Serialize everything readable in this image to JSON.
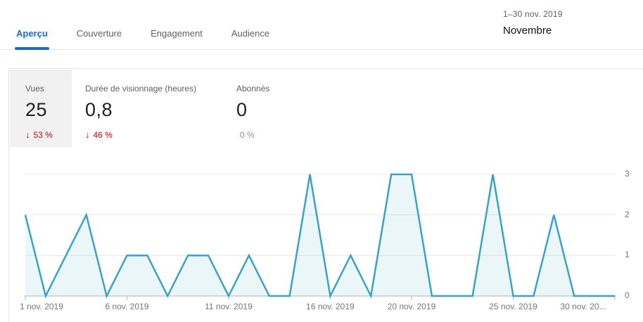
{
  "header": {
    "date_range": "1–30 nov. 2019",
    "period": "Novembre"
  },
  "tabs": {
    "items": [
      {
        "label": "Aperçu",
        "active": true
      },
      {
        "label": "Couverture",
        "active": false
      },
      {
        "label": "Engagement",
        "active": false
      },
      {
        "label": "Audience",
        "active": false
      }
    ]
  },
  "stats": {
    "cards": [
      {
        "label": "Vues",
        "value": "25",
        "delta_arrow": "↓",
        "delta": "53 %",
        "trend": "down",
        "selected": true
      },
      {
        "label": "Durée de visionnage (heures)",
        "value": "0,8",
        "delta_arrow": "↓",
        "delta": "46 %",
        "trend": "down",
        "selected": false
      },
      {
        "label": "Abonnés",
        "value": "0",
        "delta_arrow": "",
        "delta": "0 %",
        "trend": "neutral",
        "selected": false
      }
    ]
  },
  "chart_data": {
    "type": "area",
    "series_label": "Vues",
    "x_unit": "jour (novembre 2019)",
    "x": [
      1,
      2,
      3,
      4,
      5,
      6,
      7,
      8,
      9,
      10,
      11,
      12,
      13,
      14,
      15,
      16,
      17,
      18,
      19,
      20,
      21,
      22,
      23,
      24,
      25,
      26,
      27,
      28,
      29,
      30
    ],
    "values": [
      2,
      0,
      1,
      2,
      0,
      1,
      1,
      0,
      1,
      1,
      0,
      1,
      0,
      0,
      3,
      0,
      1,
      0,
      3,
      3,
      0,
      0,
      0,
      3,
      0,
      0,
      2,
      0,
      0,
      0
    ],
    "x_ticks": [
      {
        "day": 1,
        "label": "1 nov. 2019"
      },
      {
        "day": 6,
        "label": "6 nov. 2019"
      },
      {
        "day": 11,
        "label": "11 nov. 2019"
      },
      {
        "day": 16,
        "label": "16 nov. 2019"
      },
      {
        "day": 20,
        "label": "20 nov. 2019"
      },
      {
        "day": 25,
        "label": "25 nov. 2019"
      },
      {
        "day": 30,
        "label": "30 nov. 20..."
      }
    ],
    "y_ticks": [
      0,
      1,
      2,
      3
    ],
    "ylim": [
      0,
      3
    ],
    "grid": true,
    "legend": "none",
    "y_axis_side": "right"
  },
  "colors": {
    "accent_blue": "#1967d2",
    "negative_red": "#cc0000",
    "line_blue": "#3ba2c7",
    "area_fill": "rgba(59,162,199,0.10)",
    "gridline": "#e8e8e8",
    "axis_line": "#b3b3b3",
    "axis_text": "#757575",
    "text_dark": "#212121",
    "text_gray": "#606060",
    "selected_tile_bg": "#f1f1f1",
    "border": "#e5e5e5"
  }
}
